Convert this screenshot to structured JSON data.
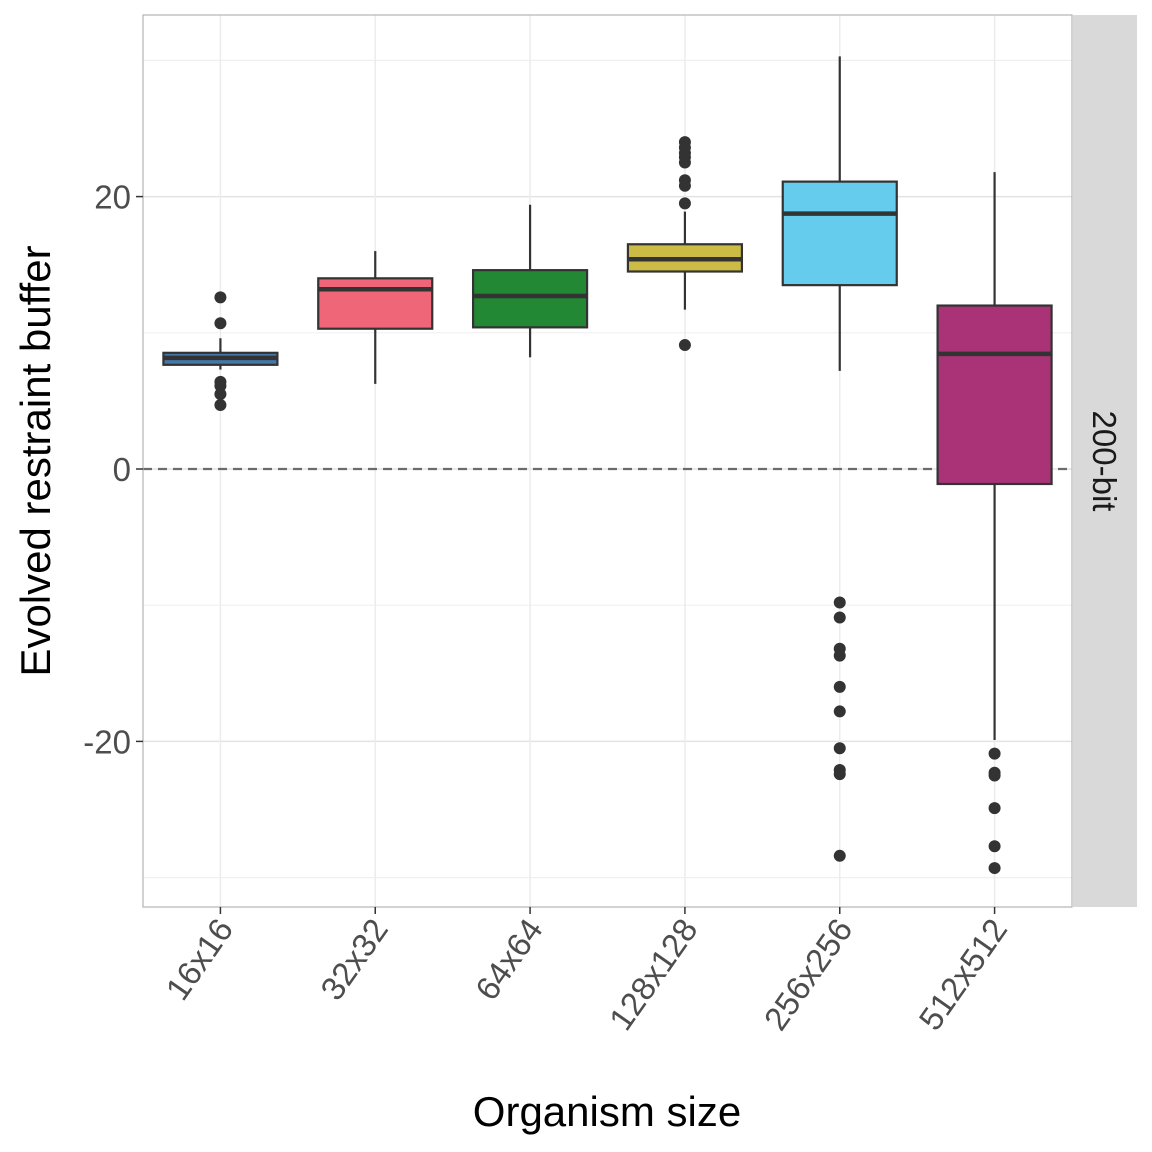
{
  "chart_data": {
    "type": "box",
    "title": "",
    "xlabel": "Organism size",
    "ylabel": "Evolved restraint buffer",
    "facet_label": "200-bit",
    "ylim": [
      -32.5,
      33
    ],
    "yticks": [
      -20,
      0,
      20
    ],
    "ytick_labels": [
      "-20",
      "0",
      "20"
    ],
    "minor_grid": [
      -30,
      -10,
      10,
      30
    ],
    "reference_line": 0,
    "grid": true,
    "categories": [
      "16x16",
      "32x32",
      "64x64",
      "128x128",
      "256x256",
      "512x512"
    ],
    "boxes": [
      {
        "category": "16x16",
        "color": "#4477aa",
        "whisker_low": 7.3,
        "q1": 7.65,
        "median": 8.16,
        "q3": 8.53,
        "whisker_high": 9.6,
        "outliers": [
          12.6,
          10.7,
          6.4,
          6.1,
          5.5,
          4.7
        ]
      },
      {
        "category": "32x32",
        "color": "#ee6677",
        "whisker_low": 6.25,
        "q1": 10.3,
        "median": 13.2,
        "q3": 14.0,
        "whisker_high": 16.0,
        "outliers": []
      },
      {
        "category": "64x64",
        "color": "#228833",
        "whisker_low": 8.2,
        "q1": 10.4,
        "median": 12.7,
        "q3": 14.6,
        "whisker_high": 19.4,
        "outliers": []
      },
      {
        "category": "128x128",
        "color": "#ccbb44",
        "whisker_low": 11.7,
        "q1": 14.5,
        "median": 15.4,
        "q3": 16.5,
        "whisker_high": 18.9,
        "outliers": [
          24.0,
          23.6,
          23.2,
          22.9,
          22.5,
          21.2,
          20.8,
          19.5,
          9.1
        ]
      },
      {
        "category": "256x256",
        "color": "#66ccee",
        "whisker_low": 7.2,
        "q1": 13.5,
        "median": 18.75,
        "q3": 21.1,
        "whisker_high": 30.3,
        "outliers": [
          -9.8,
          -10.9,
          -13.2,
          -13.7,
          -16.0,
          -17.8,
          -20.5,
          -22.1,
          -22.4,
          -28.4
        ]
      },
      {
        "category": "512x512",
        "color": "#aa3377",
        "whisker_low": -19.9,
        "q1": -1.1,
        "median": 8.45,
        "q3": 12.0,
        "whisker_high": 21.8,
        "outliers": [
          -20.9,
          -22.3,
          -22.5,
          -24.9,
          -27.7,
          -29.3
        ]
      }
    ]
  }
}
